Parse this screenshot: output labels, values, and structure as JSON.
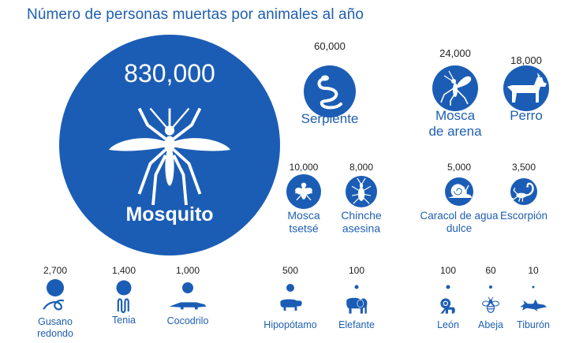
{
  "title": "Número de personas muertas por animales al año",
  "colors": {
    "circle": "#1b5db5",
    "text": "#1f5fb0",
    "white": "#ffffff"
  },
  "chart_data": {
    "type": "bubble",
    "title": "Número de personas muertas por animales al año",
    "animals": [
      {
        "name": "Mosquito",
        "value": 830000,
        "value_label": "830,000",
        "icon": "mosquito-icon"
      },
      {
        "name": "Serpiente",
        "value": 60000,
        "value_label": "60,000",
        "icon": "snake-icon"
      },
      {
        "name": "Mosca de arena",
        "value": 24000,
        "value_label": "24,000",
        "icon": "sandfly-icon"
      },
      {
        "name": "Perro",
        "value": 18000,
        "value_label": "18,000",
        "icon": "dog-icon"
      },
      {
        "name": "Mosca tsetsé",
        "value": 10000,
        "value_label": "10,000",
        "icon": "tsetse-fly-icon"
      },
      {
        "name": "Chinche asesina",
        "value": 8000,
        "value_label": "8,000",
        "icon": "assassin-bug-icon"
      },
      {
        "name": "Caracol de agua dulce",
        "value": 5000,
        "value_label": "5,000",
        "icon": "snail-icon"
      },
      {
        "name": "Escorpión",
        "value": 3500,
        "value_label": "3,500",
        "icon": "scorpion-icon"
      },
      {
        "name": "Gusano redondo",
        "value": 2700,
        "value_label": "2,700",
        "icon": "roundworm-icon"
      },
      {
        "name": "Tenia",
        "value": 1400,
        "value_label": "1,400",
        "icon": "tapeworm-icon"
      },
      {
        "name": "Cocodrilo",
        "value": 1000,
        "value_label": "1,000",
        "icon": "crocodile-icon"
      },
      {
        "name": "Hipopótamo",
        "value": 500,
        "value_label": "500",
        "icon": "hippo-icon"
      },
      {
        "name": "Elefante",
        "value": 100,
        "value_label": "100",
        "icon": "elephant-icon"
      },
      {
        "name": "León",
        "value": 100,
        "value_label": "100",
        "icon": "lion-icon"
      },
      {
        "name": "Abeja",
        "value": 60,
        "value_label": "60",
        "icon": "bee-icon"
      },
      {
        "name": "Tiburón",
        "value": 10,
        "value_label": "10",
        "icon": "shark-icon"
      }
    ]
  }
}
